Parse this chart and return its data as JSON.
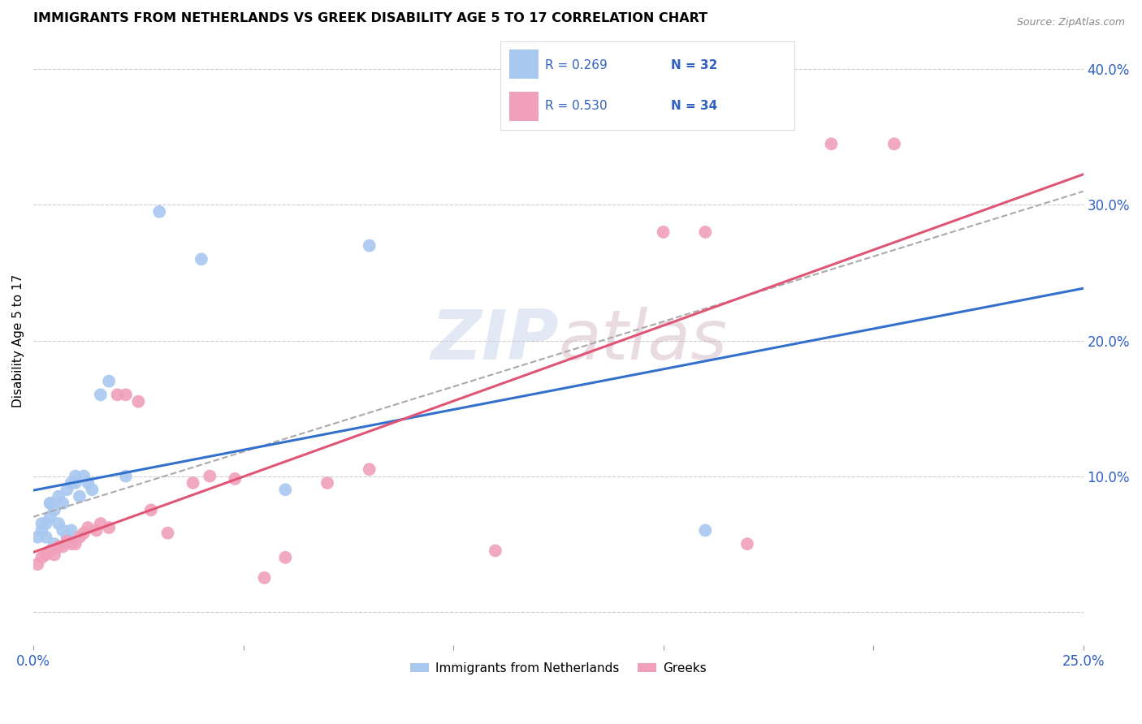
{
  "title": "IMMIGRANTS FROM NETHERLANDS VS GREEK DISABILITY AGE 5 TO 17 CORRELATION CHART",
  "source": "Source: ZipAtlas.com",
  "ylabel": "Disability Age 5 to 17",
  "xlim": [
    0.0,
    0.25
  ],
  "ylim": [
    -0.025,
    0.425
  ],
  "blue_color": "#A8C8F0",
  "pink_color": "#F0A0BA",
  "blue_line_color": "#3370CC",
  "pink_line_color": "#E05575",
  "gray_dash_color": "#AAAAAA",
  "legend_label_blue": "Immigrants from Netherlands",
  "legend_label_pink": "Greeks",
  "watermark": "ZIPatlas",
  "blue_scatter_x": [
    0.001,
    0.002,
    0.002,
    0.003,
    0.003,
    0.004,
    0.004,
    0.004,
    0.005,
    0.005,
    0.006,
    0.006,
    0.007,
    0.007,
    0.008,
    0.008,
    0.009,
    0.009,
    0.01,
    0.01,
    0.011,
    0.012,
    0.013,
    0.014,
    0.016,
    0.018,
    0.022,
    0.03,
    0.04,
    0.06,
    0.08,
    0.16
  ],
  "blue_scatter_y": [
    0.055,
    0.06,
    0.065,
    0.055,
    0.065,
    0.07,
    0.08,
    0.08,
    0.05,
    0.075,
    0.065,
    0.085,
    0.06,
    0.08,
    0.055,
    0.09,
    0.06,
    0.095,
    0.095,
    0.1,
    0.085,
    0.1,
    0.095,
    0.09,
    0.16,
    0.17,
    0.1,
    0.295,
    0.26,
    0.09,
    0.27,
    0.06
  ],
  "pink_scatter_x": [
    0.001,
    0.002,
    0.003,
    0.004,
    0.005,
    0.006,
    0.007,
    0.008,
    0.009,
    0.01,
    0.011,
    0.012,
    0.013,
    0.015,
    0.016,
    0.018,
    0.02,
    0.022,
    0.025,
    0.028,
    0.032,
    0.038,
    0.042,
    0.048,
    0.055,
    0.06,
    0.07,
    0.08,
    0.11,
    0.15,
    0.16,
    0.17,
    0.19,
    0.205
  ],
  "pink_scatter_y": [
    0.035,
    0.04,
    0.042,
    0.045,
    0.042,
    0.048,
    0.048,
    0.052,
    0.05,
    0.05,
    0.055,
    0.058,
    0.062,
    0.06,
    0.065,
    0.062,
    0.16,
    0.16,
    0.155,
    0.075,
    0.058,
    0.095,
    0.1,
    0.098,
    0.025,
    0.04,
    0.095,
    0.105,
    0.045,
    0.28,
    0.28,
    0.05,
    0.345,
    0.345
  ],
  "blue_line_x0": 0.0,
  "blue_line_y0": 0.06,
  "blue_line_x1": 0.25,
  "blue_line_y1": 0.27,
  "pink_line_x0": 0.0,
  "pink_line_y0": 0.02,
  "pink_line_x1": 0.25,
  "pink_line_y1": 0.26,
  "gray_line_x0": 0.0,
  "gray_line_y0": 0.07,
  "gray_line_x1": 0.25,
  "gray_line_y1": 0.31
}
